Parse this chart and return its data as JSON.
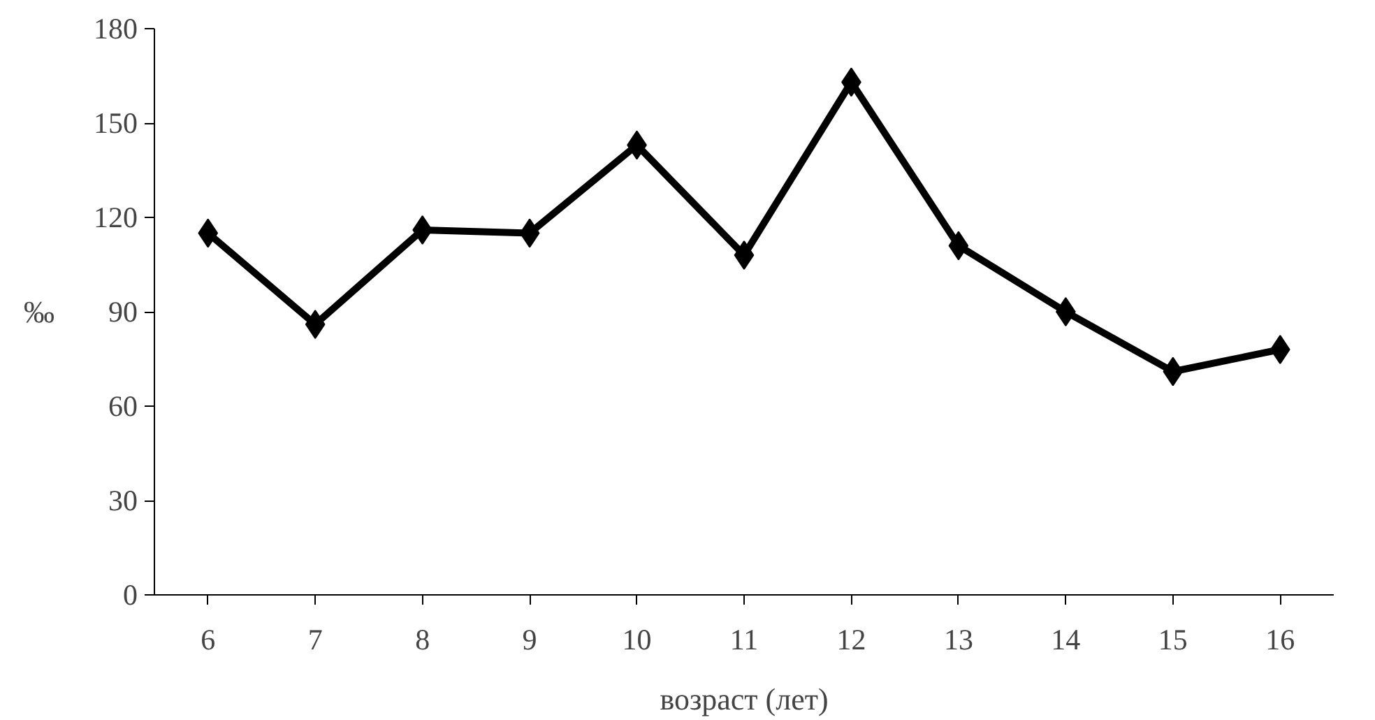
{
  "chart_data": {
    "type": "line",
    "xlabel": "возраст (лет)",
    "ylabel": "‰",
    "categories": [
      "6",
      "7",
      "8",
      "9",
      "10",
      "11",
      "12",
      "13",
      "14",
      "15",
      "16"
    ],
    "series": [
      {
        "color": "#000000",
        "values": [
          115,
          86,
          116,
          115,
          143,
          108,
          163,
          111,
          90,
          71,
          78
        ]
      }
    ],
    "ylim": [
      0,
      180
    ],
    "yticks": [
      0,
      30,
      60,
      90,
      120,
      150,
      180
    ],
    "grid": false,
    "marker": "diamond",
    "line_style": "solid"
  }
}
